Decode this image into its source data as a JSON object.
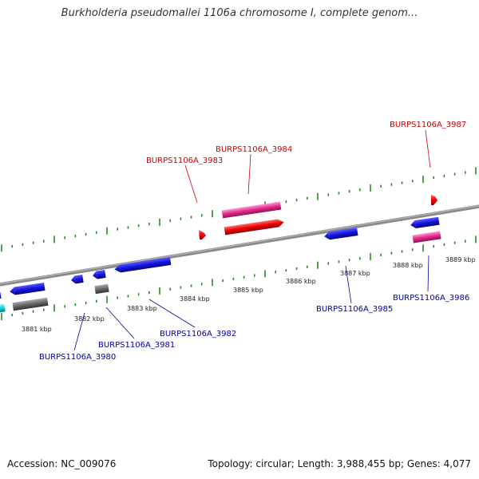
{
  "header": {
    "title": "Burkholderia pseudomallei 1106a chromosome I, complete genom..."
  },
  "footer": {
    "accession": "Accession: NC_009076",
    "topology": "Topology: circular; Length: 3,988,455 bp; Genes: 4,077"
  },
  "scale_labels": [
    "3881 kbp",
    "3882 kbp",
    "3883 kbp",
    "3884 kbp",
    "3885 kbp",
    "3886 kbp",
    "3887 kbp",
    "3888 kbp",
    "3889 kbp"
  ],
  "gene_labels": {
    "top": [
      "BURPS1106A_3983",
      "BURPS1106A_3984",
      "BURPS1106A_3987"
    ],
    "bottom": [
      "BURPS1106A_3980",
      "BURPS1106A_3981",
      "BURPS1106A_3982",
      "BURPS1106A_3985",
      "BURPS1106A_3986"
    ]
  },
  "colors": {
    "forward_label": "#cc0000",
    "reverse_label": "#0000aa",
    "backbone": "#888888",
    "ticks": "#228B22",
    "blue_gene": "#1414e0",
    "red_gene": "#ee0000",
    "pink_gene": "#e8288c",
    "gray_gene": "#666666",
    "cyan_gene": "#00d8e8"
  }
}
